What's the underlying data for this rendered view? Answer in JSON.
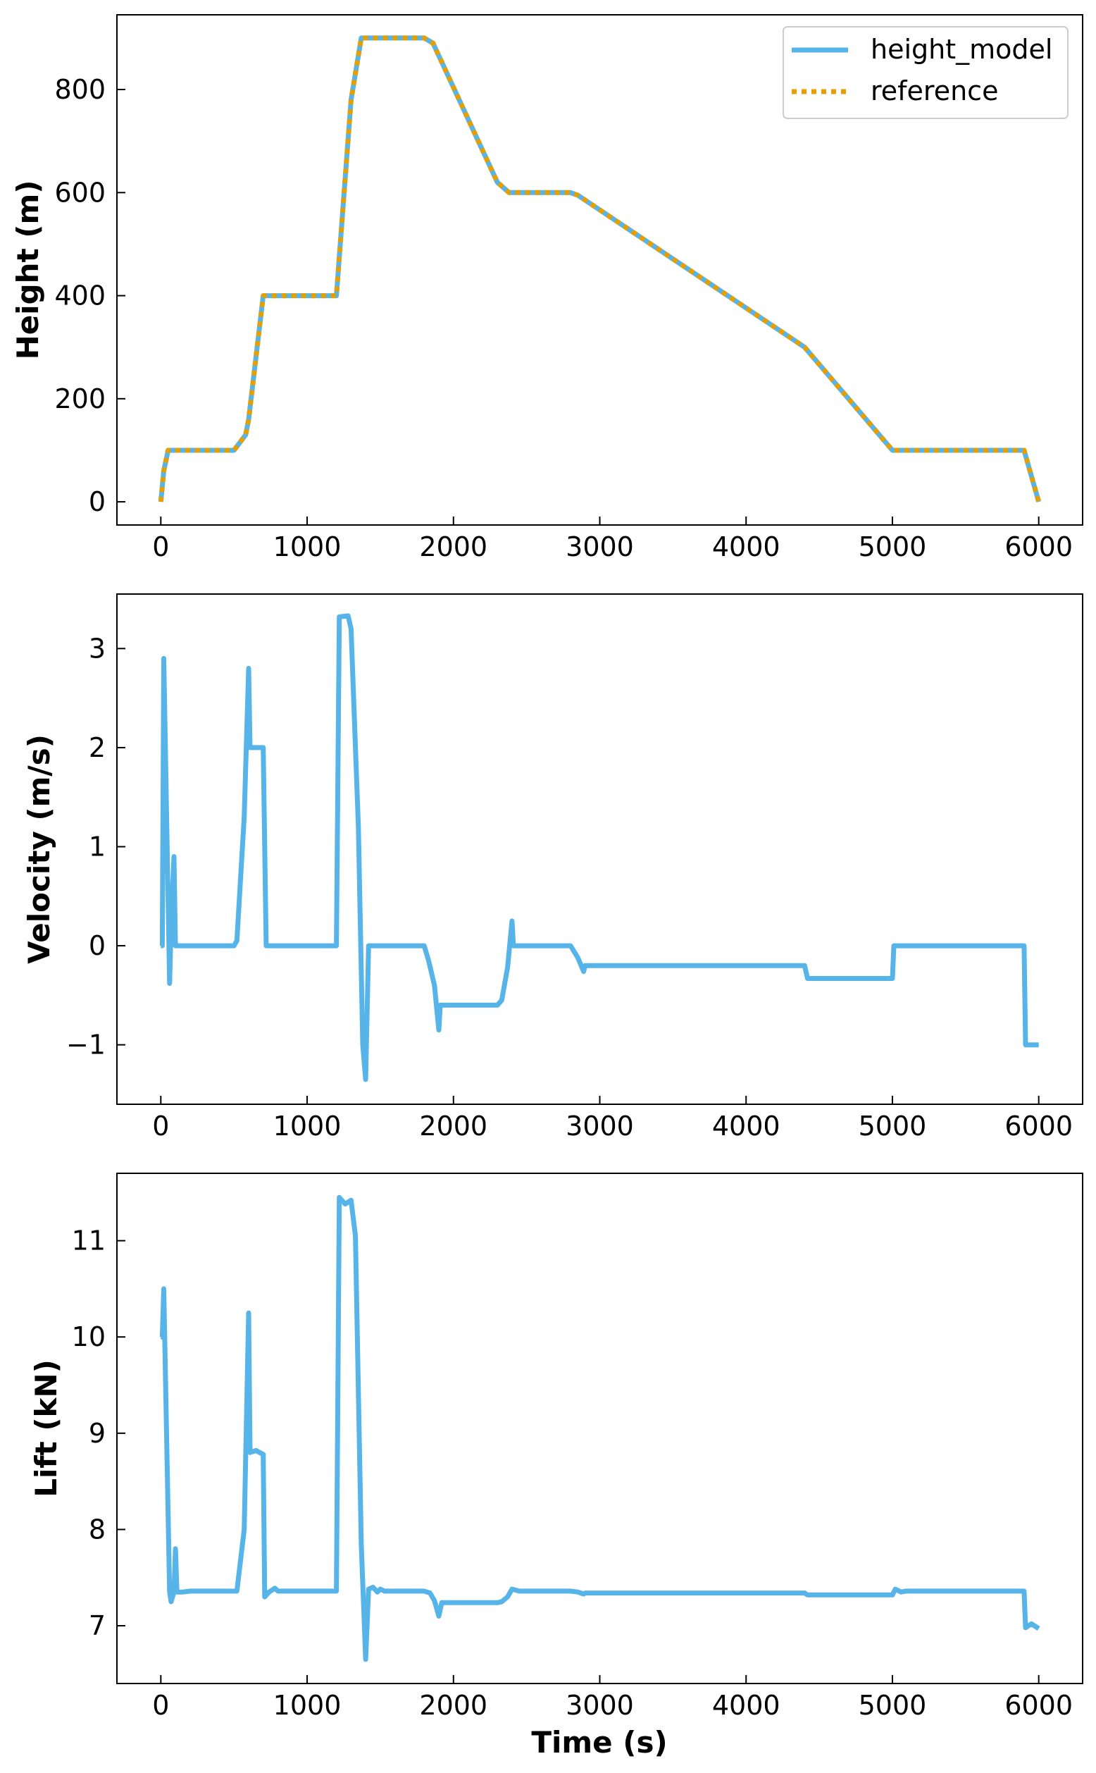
{
  "chart_data": [
    {
      "type": "line",
      "title": "",
      "xlabel": "",
      "ylabel": "Height (m)",
      "xlim": [
        -300,
        6300
      ],
      "ylim": [
        -45,
        945
      ],
      "xticks": [
        0,
        1000,
        2000,
        3000,
        4000,
        5000,
        6000
      ],
      "yticks": [
        0,
        200,
        400,
        600,
        800
      ],
      "grid": false,
      "legend": "top-right",
      "series": [
        {
          "name": "height_model",
          "color": "#56B4E9",
          "style": "solid",
          "x": [
            0,
            20,
            50,
            100,
            500,
            580,
            600,
            700,
            1200,
            1300,
            1370,
            1800,
            1860,
            2300,
            2380,
            2800,
            2850,
            4400,
            5000,
            5900,
            6000
          ],
          "y": [
            0,
            60,
            100,
            100,
            100,
            130,
            160,
            400,
            400,
            780,
            900,
            900,
            890,
            620,
            600,
            600,
            595,
            300,
            100,
            100,
            0
          ]
        },
        {
          "name": "reference",
          "color": "#E69F00",
          "style": "dotted",
          "x": [
            0,
            20,
            50,
            100,
            500,
            580,
            600,
            700,
            1200,
            1300,
            1370,
            1800,
            1860,
            2300,
            2380,
            2800,
            2850,
            4400,
            5000,
            5900,
            6000
          ],
          "y": [
            0,
            60,
            100,
            100,
            100,
            130,
            160,
            400,
            400,
            780,
            900,
            900,
            890,
            620,
            600,
            600,
            595,
            300,
            100,
            100,
            0
          ]
        }
      ]
    },
    {
      "type": "line",
      "title": "",
      "xlabel": "",
      "ylabel": "Velocity (m/s)",
      "xlim": [
        -300,
        6300
      ],
      "ylim": [
        -1.6,
        3.55
      ],
      "xticks": [
        0,
        1000,
        2000,
        3000,
        4000,
        5000,
        6000
      ],
      "yticks": [
        -1,
        0,
        1,
        2,
        3
      ],
      "grid": false,
      "series": [
        {
          "name": "",
          "color": "#56B4E9",
          "style": "solid",
          "x": [
            0,
            10,
            20,
            60,
            70,
            90,
            100,
            120,
            500,
            520,
            570,
            600,
            610,
            700,
            720,
            1200,
            1220,
            1280,
            1300,
            1350,
            1380,
            1400,
            1420,
            1800,
            1830,
            1870,
            1900,
            1910,
            2300,
            2330,
            2370,
            2400,
            2410,
            2800,
            2850,
            2890,
            2900,
            4400,
            4420,
            5000,
            5010,
            5900,
            5910,
            6000
          ],
          "y": [
            0,
            0,
            2.9,
            -0.38,
            0.2,
            0.9,
            0.0,
            0.0,
            0.0,
            0.05,
            1.3,
            2.8,
            2.0,
            2.0,
            0.0,
            0.0,
            3.32,
            3.33,
            3.2,
            1.2,
            -1.0,
            -1.35,
            0.0,
            0.0,
            -0.15,
            -0.4,
            -0.85,
            -0.6,
            -0.6,
            -0.55,
            -0.22,
            0.25,
            0.0,
            0.0,
            -0.12,
            -0.26,
            -0.2,
            -0.2,
            -0.33,
            -0.33,
            0.0,
            0.0,
            -1.0,
            -1.0
          ]
        }
      ]
    },
    {
      "type": "line",
      "title": "",
      "xlabel": "Time (s)",
      "ylabel": "Lift (kN)",
      "xlim": [
        -300,
        6300
      ],
      "ylim": [
        6.4,
        11.7
      ],
      "xticks": [
        0,
        1000,
        2000,
        3000,
        4000,
        5000,
        6000
      ],
      "yticks": [
        7,
        8,
        9,
        10,
        11
      ],
      "grid": false,
      "series": [
        {
          "name": "",
          "color": "#56B4E9",
          "style": "solid",
          "x": [
            0,
            10,
            20,
            60,
            70,
            90,
            100,
            110,
            150,
            200,
            500,
            520,
            570,
            600,
            610,
            650,
            700,
            710,
            740,
            780,
            800,
            1200,
            1220,
            1260,
            1300,
            1330,
            1370,
            1400,
            1420,
            1450,
            1480,
            1500,
            1530,
            1800,
            1840,
            1870,
            1900,
            1920,
            2000,
            2300,
            2330,
            2370,
            2400,
            2450,
            2800,
            2850,
            2890,
            2900,
            4400,
            4420,
            5000,
            5020,
            5060,
            5090,
            5900,
            5910,
            5950,
            6000
          ],
          "y": [
            10.0,
            10.0,
            10.5,
            7.35,
            7.25,
            7.35,
            7.8,
            7.35,
            7.35,
            7.36,
            7.36,
            7.36,
            8.0,
            10.25,
            8.8,
            8.82,
            8.78,
            7.3,
            7.35,
            7.39,
            7.36,
            7.36,
            11.45,
            11.38,
            11.42,
            11.05,
            7.85,
            6.65,
            7.38,
            7.4,
            7.35,
            7.38,
            7.36,
            7.36,
            7.34,
            7.26,
            7.1,
            7.24,
            7.24,
            7.24,
            7.25,
            7.3,
            7.38,
            7.36,
            7.36,
            7.35,
            7.33,
            7.34,
            7.34,
            7.32,
            7.32,
            7.38,
            7.35,
            7.36,
            7.36,
            6.98,
            7.02,
            6.97
          ]
        }
      ]
    }
  ]
}
